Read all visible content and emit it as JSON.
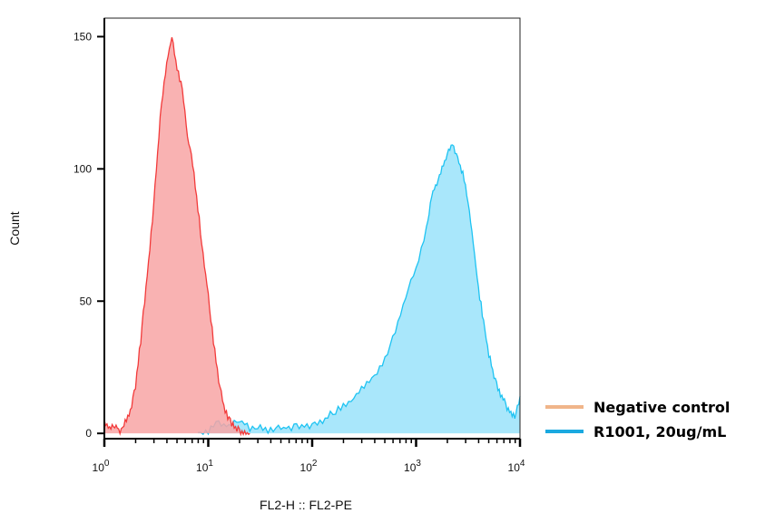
{
  "chart_data": {
    "type": "area",
    "title": "",
    "xlabel": "FL2-H :: FL2-PE",
    "ylabel": "Count",
    "xscale": "log10",
    "xlim": [
      1,
      10000
    ],
    "ylim": [
      -2,
      157
    ],
    "x_ticks": [
      {
        "base": "10",
        "exp": "0"
      },
      {
        "base": "10",
        "exp": "1"
      },
      {
        "base": "10",
        "exp": "2"
      },
      {
        "base": "10",
        "exp": "3"
      },
      {
        "base": "10",
        "exp": "4"
      }
    ],
    "y_ticks": [
      "0",
      "50",
      "100",
      "150"
    ],
    "y_tick_values": [
      0,
      50,
      100,
      150
    ],
    "legend_position": "right",
    "grid": false,
    "series": [
      {
        "name": "Negative control",
        "line_color": "#f23a3a",
        "fill_color": "#f8a5a5",
        "legend_color": "#f0b58a",
        "log_x": [
          0,
          0.05,
          0.1,
          0.15,
          0.2,
          0.25,
          0.3,
          0.35,
          0.4,
          0.45,
          0.5,
          0.55,
          0.6,
          0.65,
          0.7,
          0.75,
          0.8,
          0.85,
          0.9,
          0.95,
          1.0,
          1.05,
          1.1,
          1.15,
          1.2,
          1.25,
          1.3,
          1.35,
          1.4
        ],
        "y": [
          5,
          2,
          3,
          1,
          4,
          8,
          18,
          35,
          55,
          75,
          100,
          125,
          140,
          150,
          138,
          130,
          112,
          102,
          85,
          68,
          52,
          35,
          20,
          10,
          5,
          3,
          1,
          0,
          0
        ]
      },
      {
        "name": "R1001, 20ug/mL",
        "line_color": "#1ec3f2",
        "fill_color": "#a4e6fb",
        "legend_color": "#1aa9e0",
        "log_x": [
          0.9,
          1.0,
          1.1,
          1.2,
          1.3,
          1.4,
          1.5,
          1.6,
          1.7,
          1.8,
          1.9,
          2.0,
          2.1,
          2.2,
          2.3,
          2.4,
          2.5,
          2.6,
          2.7,
          2.8,
          2.9,
          3.0,
          3.1,
          3.15,
          3.2,
          3.25,
          3.3,
          3.35,
          3.4,
          3.45,
          3.5,
          3.55,
          3.6,
          3.65,
          3.7,
          3.75,
          3.8,
          3.85,
          3.9,
          3.95,
          4.0
        ],
        "y": [
          0,
          1,
          4,
          3,
          5,
          2,
          2,
          1,
          2,
          2,
          3,
          3,
          5,
          8,
          10,
          14,
          18,
          22,
          28,
          38,
          52,
          62,
          78,
          90,
          95,
          100,
          105,
          110,
          104,
          98,
          88,
          72,
          55,
          42,
          30,
          22,
          16,
          12,
          8,
          6,
          14
        ]
      }
    ]
  }
}
